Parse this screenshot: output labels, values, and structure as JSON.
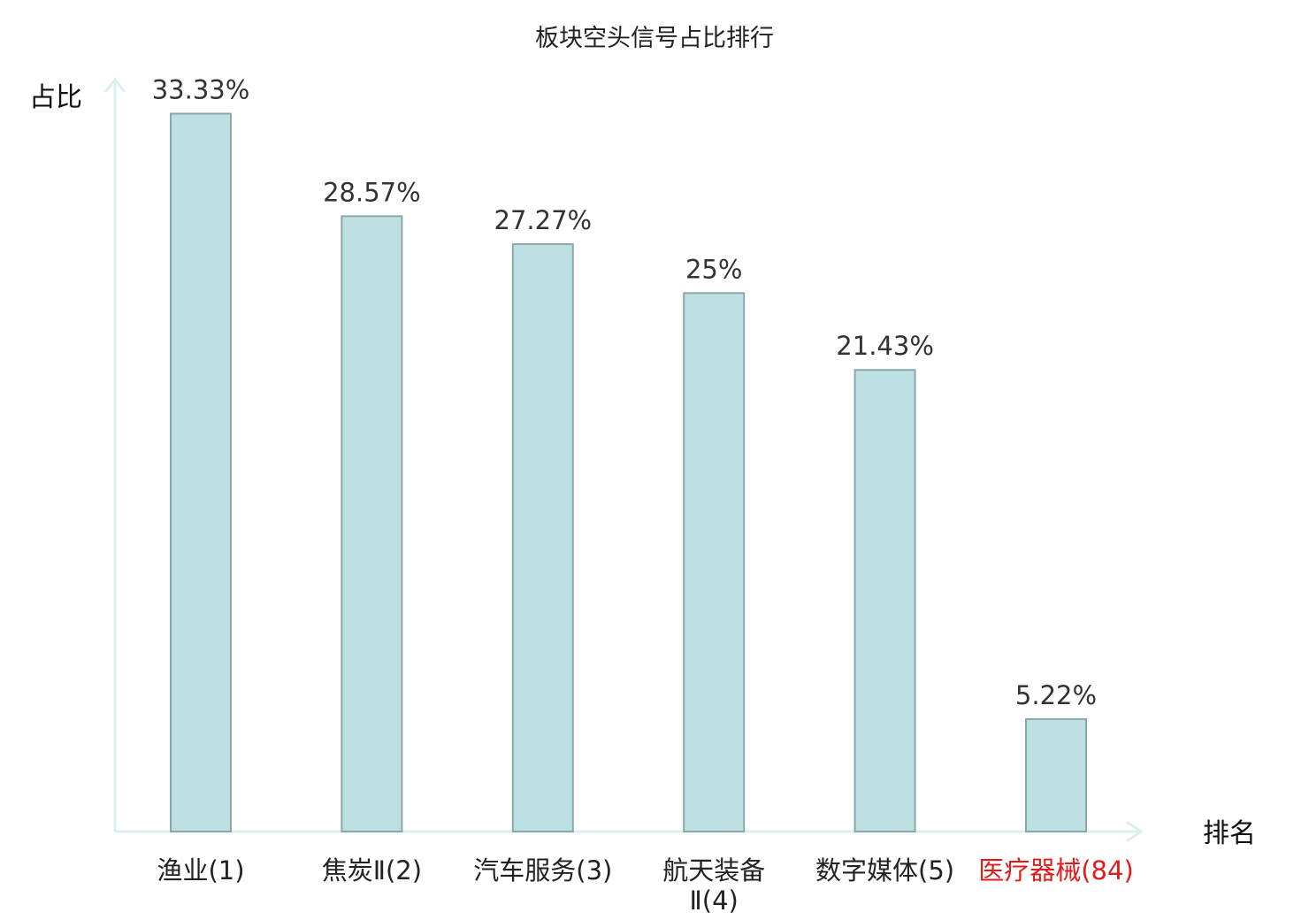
{
  "chart_data": {
    "type": "bar",
    "title": "板块空头信号占比排行",
    "ylabel": "占比",
    "xlabel": "排名",
    "categories": [
      [
        "渔业(1)"
      ],
      [
        "焦炭Ⅱ(2)"
      ],
      [
        "汽车服务(3)"
      ],
      [
        "航天装备",
        "Ⅱ(4)"
      ],
      [
        "数字媒体(5)"
      ],
      [
        "医疗器械(84)"
      ]
    ],
    "values": [
      33.33,
      28.57,
      27.27,
      25,
      21.43,
      5.22
    ],
    "value_labels": [
      "33.33%",
      "28.57%",
      "27.27%",
      "25%",
      "21.43%",
      "5.22%"
    ],
    "highlight_index": 5,
    "ylim": [
      0,
      34.5
    ],
    "grid": false,
    "colors": {
      "bar_fill": "#bde0e3",
      "bar_stroke": "#8aa8ab",
      "axis": "#dcefef",
      "highlight_text": "#e01b1b",
      "text": "#222222"
    }
  }
}
